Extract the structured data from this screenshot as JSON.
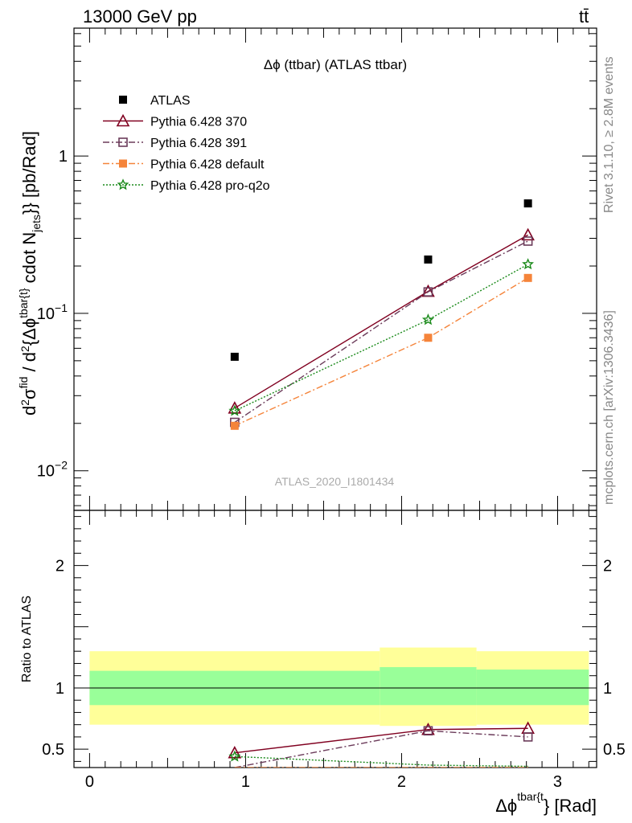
{
  "header": {
    "left": "13000 GeV pp",
    "right": "tt̄"
  },
  "side_labels": {
    "rivet": "Rivet 3.1.10, ≥ 2.8M events",
    "mcplots": "mcplots.cern.ch [arXiv:1306.3436]"
  },
  "chart_data": {
    "type": "scatter",
    "title": "Δϕ (ttbar) (ATLAS ttbar)",
    "watermark": "ATLAS_2020_I1801434",
    "xlabel": "Δϕ^{tbar{t}} [Rad]",
    "xlabel_main": "Δϕ",
    "xlabel_sup": "tbar{t",
    "xlabel_tail": "} [Rad]",
    "ylabel_main": "d²σ^{fid} / d²{Δϕ^{tbar{t}} cdot N_{jets}} [pb/Rad]",
    "ylabel_ratio": "Ratio to ATLAS",
    "xlim": [
      -0.1,
      3.25
    ],
    "ylim_main": [
      0.0056,
      6.5
    ],
    "ylim_ratio": [
      0.35,
      2.45
    ],
    "y_scale_main": "log",
    "x_ticks": [
      0,
      1,
      2,
      3
    ],
    "main_y_ticks": [
      {
        "v": 0.01,
        "base": "10",
        "exp": "−2"
      },
      {
        "v": 0.1,
        "base": "10",
        "exp": "−1"
      },
      {
        "v": 1,
        "base": "1",
        "exp": ""
      }
    ],
    "ratio_y_ticks": [
      {
        "v": 0.5,
        "label": "0.5"
      },
      {
        "v": 1,
        "label": "1"
      },
      {
        "v": 2,
        "label": "2"
      }
    ],
    "legend_position": "top-left",
    "data": {
      "name": "ATLAS",
      "x": [
        0.93,
        2.17,
        2.81
      ],
      "y": [
        0.053,
        0.22,
        0.5
      ]
    },
    "ratio_bands": [
      {
        "x0": 0.0,
        "x1": 1.86,
        "yellow": [
          0.7,
          1.3
        ],
        "green": [
          0.86,
          1.14
        ]
      },
      {
        "x0": 1.86,
        "x1": 2.48,
        "yellow": [
          0.69,
          1.33
        ],
        "green": [
          0.86,
          1.17
        ]
      },
      {
        "x0": 2.48,
        "x1": 3.2,
        "yellow": [
          0.7,
          1.3
        ],
        "green": [
          0.86,
          1.15
        ]
      }
    ],
    "series": [
      {
        "name": "Pythia 6.428 370",
        "color": "#800020",
        "dash": "",
        "marker": "triangle",
        "x": [
          0.93,
          2.17,
          2.81
        ],
        "y": [
          0.025,
          0.138,
          0.315
        ],
        "ratio": [
          0.47,
          0.66,
          0.67
        ]
      },
      {
        "name": "Pythia 6.428 391",
        "color": "#6b3b5a",
        "dash": "8,3,2,3",
        "marker": "square-open",
        "x": [
          0.93,
          2.17,
          2.81
        ],
        "y": [
          0.0203,
          0.137,
          0.288
        ],
        "ratio": [
          0.3,
          0.65,
          0.6
        ]
      },
      {
        "name": "Pythia 6.428 default",
        "color": "#f5843a",
        "dash": "8,3,2,3",
        "marker": "square-filled",
        "x": [
          0.93,
          2.17,
          2.81
        ],
        "y": [
          0.0193,
          0.07,
          0.168
        ],
        "ratio": [
          0.3,
          0.3,
          0.3
        ]
      },
      {
        "name": "Pythia 6.428 pro-q2o",
        "color": "#1a8a1a",
        "dash": "2,2",
        "marker": "star",
        "x": [
          0.93,
          2.17,
          2.81
        ],
        "y": [
          0.024,
          0.091,
          0.205
        ],
        "ratio": [
          0.44,
          0.37,
          0.36
        ]
      }
    ]
  }
}
